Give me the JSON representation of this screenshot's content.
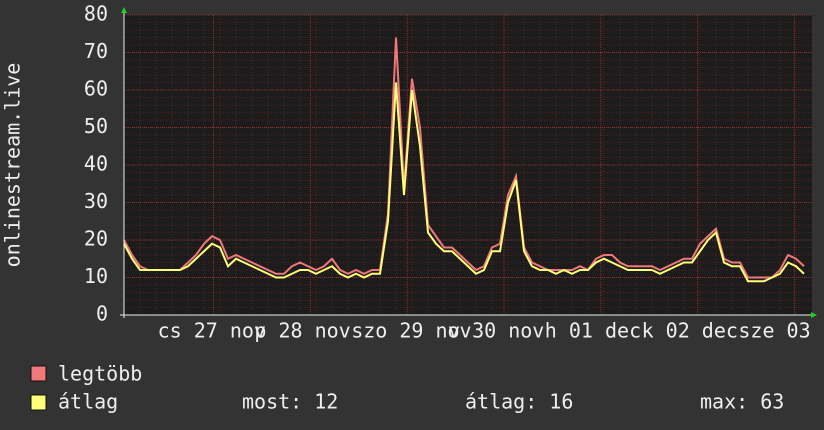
{
  "chart_data": {
    "type": "line",
    "ylabel": "onlinestream.live",
    "xlim": [
      0,
      86
    ],
    "ylim": [
      0,
      80
    ],
    "yticks": [
      0,
      10,
      20,
      30,
      40,
      50,
      60,
      70,
      80
    ],
    "xticks": [
      {
        "value": 11.2,
        "label": "cs 27 nov"
      },
      {
        "value": 23.3,
        "label": "p 28 nov"
      },
      {
        "value": 35.4,
        "label": "szo 29 nov"
      },
      {
        "value": 47.5,
        "label": "v 30 nov"
      },
      {
        "value": 59.6,
        "label": "h 01 dec"
      },
      {
        "value": 71.7,
        "label": "k 02 dec"
      },
      {
        "value": 83.8,
        "label": "sze 03"
      }
    ],
    "grid": true,
    "x": [
      0,
      1,
      2,
      3,
      4,
      5,
      6,
      7,
      8,
      9,
      10,
      11,
      12,
      13,
      14,
      15,
      16,
      17,
      18,
      19,
      20,
      21,
      22,
      23,
      24,
      25,
      26,
      27,
      28,
      29,
      30,
      31,
      32,
      33,
      34,
      35,
      36,
      37,
      38,
      39,
      40,
      41,
      42,
      43,
      44,
      45,
      46,
      47,
      48,
      49,
      50,
      51,
      52,
      53,
      54,
      55,
      56,
      57,
      58,
      59,
      60,
      61,
      62,
      63,
      64,
      65,
      66,
      67,
      68,
      69,
      70,
      71,
      72,
      73,
      74,
      75,
      76,
      77,
      78,
      79,
      80,
      81,
      82,
      83,
      84,
      85
    ],
    "series": [
      {
        "name": "legtöbb",
        "color": "#f07878",
        "values": [
          20,
          16,
          13,
          12,
          12,
          12,
          12,
          12,
          14,
          16,
          19,
          21,
          20,
          15,
          16,
          15,
          14,
          13,
          12,
          11,
          11,
          13,
          14,
          13,
          12,
          13,
          15,
          12,
          11,
          12,
          11,
          12,
          12,
          27,
          74,
          34,
          63,
          50,
          24,
          21,
          18,
          18,
          16,
          14,
          12,
          13,
          18,
          19,
          32,
          37,
          18,
          14,
          13,
          12,
          12,
          12,
          12,
          13,
          12,
          15,
          16,
          16,
          14,
          13,
          13,
          13,
          13,
          12,
          13,
          14,
          15,
          15,
          19,
          21,
          23,
          15,
          14,
          14,
          10,
          10,
          10,
          10,
          12,
          16,
          15,
          13
        ]
      },
      {
        "name": "átlag",
        "color": "#ffff78",
        "values": [
          19,
          15,
          12,
          12,
          12,
          12,
          12,
          12,
          13,
          15,
          17,
          19,
          18,
          13,
          15,
          14,
          13,
          12,
          11,
          10,
          10,
          11,
          12,
          12,
          11,
          12,
          13,
          11,
          10,
          11,
          10,
          11,
          11,
          25,
          62,
          32,
          60,
          45,
          22,
          19,
          17,
          17,
          15,
          13,
          11,
          12,
          17,
          17,
          30,
          36,
          17,
          13,
          12,
          12,
          11,
          12,
          11,
          12,
          12,
          14,
          15,
          14,
          13,
          12,
          12,
          12,
          12,
          11,
          12,
          13,
          14,
          14,
          17,
          20,
          22,
          14,
          13,
          13,
          9,
          9,
          9,
          10,
          11,
          14,
          13,
          11
        ]
      }
    ],
    "stats": [
      "most: 12",
      "átlag: 16",
      "max: 63"
    ]
  }
}
